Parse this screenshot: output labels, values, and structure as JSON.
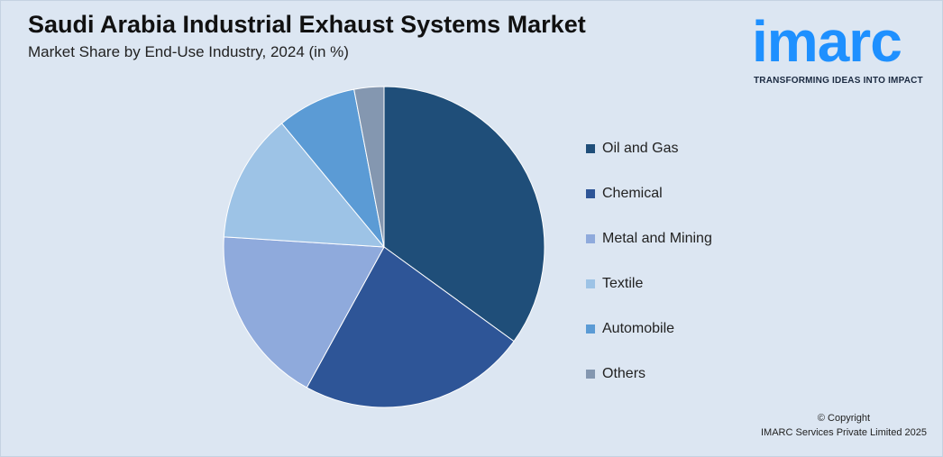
{
  "header": {
    "title": "Saudi Arabia Industrial Exhaust Systems Market",
    "subtitle": "Market Share by End-Use Industry, 2024 (in %)"
  },
  "logo": {
    "word": "imarc",
    "tagline": "TRANSFORMING IDEAS INTO IMPACT",
    "color": "#1e90ff"
  },
  "footer": {
    "copyright_line1": "© Copyright",
    "copyright_line2": "IMARC Services Private Limited 2025"
  },
  "chart_data": {
    "type": "pie",
    "title": "Saudi Arabia Industrial Exhaust Systems Market",
    "subtitle": "Market Share by End-Use Industry, 2024 (in %)",
    "legend_position": "right",
    "slices": [
      {
        "label": "Oil and Gas",
        "value": 35,
        "color": "#1f4e79"
      },
      {
        "label": "Chemical",
        "value": 23,
        "color": "#2e5597"
      },
      {
        "label": "Metal and Mining",
        "value": 18,
        "color": "#8faadc"
      },
      {
        "label": "Textile",
        "value": 13,
        "color": "#9dc3e6"
      },
      {
        "label": "Automobile",
        "value": 8,
        "color": "#5b9bd5"
      },
      {
        "label": "Others",
        "value": 3,
        "color": "#8497b0"
      }
    ]
  }
}
